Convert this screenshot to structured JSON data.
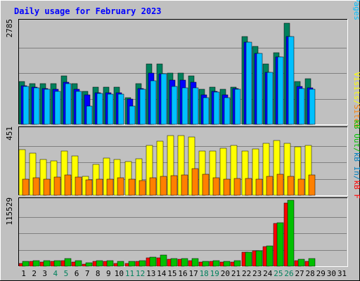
{
  "chart_data": {
    "type": "bar",
    "title": "Daily usage for February 2023",
    "categories": [
      "1",
      "2",
      "3",
      "4",
      "5",
      "6",
      "7",
      "8",
      "9",
      "10",
      "11",
      "12",
      "13",
      "14",
      "15",
      "16",
      "17",
      "18",
      "19",
      "20",
      "21",
      "22",
      "23",
      "24",
      "25",
      "26",
      "27",
      "28",
      "29",
      "30",
      "31"
    ],
    "weekend_days": [
      "4",
      "5",
      "11",
      "12",
      "18",
      "19",
      "25",
      "26"
    ],
    "colors": {
      "background": "#c0c0c0",
      "title": "#0000ff",
      "hits": "#00805c",
      "files": "#0000ff",
      "pages": "#00c0ff",
      "visits": "#ffff00",
      "sites": "#ff8000",
      "kb_f": "#ff0000",
      "kb_in": "#0080c0",
      "kb_out": "#00c000",
      "day_weekday": "#000000",
      "day_weekend": "#00805c"
    },
    "panels": [
      {
        "name": "hits-files-pages",
        "ymax_label": "2785",
        "ymax": 2785,
        "right_label": [
          {
            "text": "Pages",
            "color": "#00c0ff"
          },
          {
            "text": "Files",
            "color": "#0000ff"
          },
          {
            "text": "Hits",
            "color": "#00805c"
          }
        ],
        "series": [
          {
            "name": "Hits",
            "color": "#00805c",
            "values": [
              1170,
              1100,
              1100,
              1100,
              1310,
              1100,
              900,
              1010,
              1010,
              1010,
              725,
              1110,
              1650,
              1650,
              1400,
              1400,
              1310,
              950,
              1010,
              950,
              1010,
              2385,
              2110,
              1650,
              1950,
              2745,
              1170,
              1240,
              0,
              0,
              0
            ]
          },
          {
            "name": "Files",
            "color": "#0000ff",
            "values": [
              1050,
              1010,
              980,
              950,
              1150,
              950,
              800,
              860,
              860,
              860,
              690,
              970,
              1390,
              1380,
              1200,
              1200,
              1150,
              800,
              900,
              800,
              980,
              2230,
              1920,
              1420,
              1830,
              2380,
              1030,
              990,
              0,
              0,
              0
            ]
          },
          {
            "name": "Pages",
            "color": "#00c0ff",
            "values": [
              1030,
              990,
              950,
              900,
              1100,
              900,
              500,
              840,
              820,
              820,
              500,
              950,
              1190,
              1380,
              1030,
              1000,
              1000,
              730,
              870,
              720,
              960,
              2240,
              1930,
              1420,
              1830,
              2380,
              980,
              960,
              0,
              0,
              0
            ]
          }
        ]
      },
      {
        "name": "visits-sites",
        "ymax_label": "451",
        "ymax": 451,
        "right_label": [
          {
            "text": "Sites",
            "color": "#ff8000"
          },
          {
            "text": "/",
            "color": "#ffff00"
          },
          {
            "text": "Visits",
            "color": "#ffff00"
          }
        ],
        "series": [
          {
            "name": "Visits",
            "color": "#ffff00",
            "values": [
              310,
              290,
              245,
              235,
              300,
              270,
              130,
              210,
              255,
              245,
              230,
              250,
              340,
              370,
              410,
              410,
              400,
              300,
              300,
              320,
              340,
              300,
              315,
              355,
              375,
              355,
              330,
              340,
              0,
              0,
              0
            ]
          },
          {
            "name": "Sites",
            "color": "#ff8000",
            "values": [
              110,
              120,
              110,
              125,
              140,
              125,
              105,
              110,
              110,
              120,
              110,
              100,
              120,
              130,
              135,
              140,
              180,
              145,
              120,
              110,
              115,
              115,
              110,
              130,
              145,
              130,
              110,
              140,
              0,
              0,
              0
            ]
          }
        ]
      },
      {
        "name": "kb",
        "ymax_label": "115529",
        "ymax": 115529,
        "right_label": [
          {
            "text": "kB F",
            "color": "#ff0000"
          },
          {
            "text": "kB In",
            "color": "#0080c0"
          },
          {
            "text": "kB Out",
            "color": "#00c000"
          }
        ],
        "series": [
          {
            "name": "kB F",
            "color": "#ff0000",
            "values": [
              5000,
              9000,
              7000,
              9000,
              10000,
              7000,
              4000,
              9000,
              9000,
              5000,
              5000,
              9000,
              15000,
              15000,
              12000,
              12000,
              10000,
              7000,
              9000,
              7000,
              7000,
              25000,
              27000,
              35000,
              75000,
              110000,
              10000,
              8000,
              0,
              0,
              0
            ]
          },
          {
            "name": "kB Out",
            "color": "#00c000",
            "values": [
              9000,
              10000,
              10000,
              10000,
              13000,
              10000,
              6000,
              10000,
              10000,
              8000,
              8000,
              10000,
              16000,
              20000,
              13000,
              13000,
              13000,
              9000,
              10000,
              9000,
              10000,
              25000,
              27000,
              36000,
              76000,
              115529,
              12000,
              13000,
              0,
              0,
              0
            ]
          }
        ]
      }
    ]
  }
}
